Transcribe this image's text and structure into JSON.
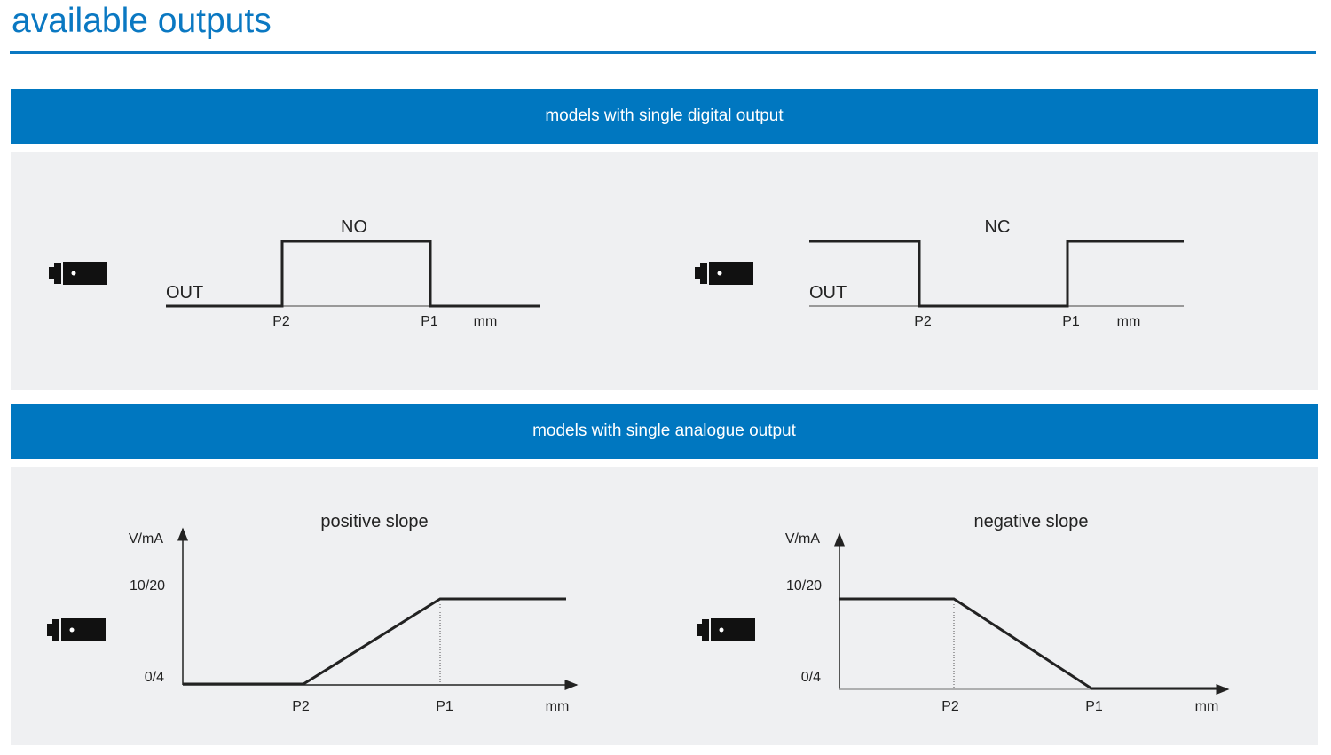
{
  "title": "available outputs",
  "sections": [
    {
      "header": "models with single digital output",
      "diagrams": [
        {
          "label": "NO",
          "y_label": "OUT",
          "x_ticks": [
            "P2",
            "P1"
          ],
          "x_unit": "mm"
        },
        {
          "label": "NC",
          "y_label": "OUT",
          "x_ticks": [
            "P2",
            "P1"
          ],
          "x_unit": "mm"
        }
      ]
    },
    {
      "header": "models with single analogue output",
      "diagrams": [
        {
          "label": "positive slope",
          "y_label": "V/mA",
          "y_ticks": [
            "10/20",
            "0/4"
          ],
          "x_ticks": [
            "P2",
            "P1"
          ],
          "x_unit": "mm"
        },
        {
          "label": "negative slope",
          "y_label": "V/mA",
          "y_ticks": [
            "10/20",
            "0/4"
          ],
          "x_ticks": [
            "P2",
            "P1"
          ],
          "x_unit": "mm"
        }
      ]
    }
  ],
  "colors": {
    "accent": "#0077c0",
    "panel": "#eff0f2"
  },
  "icons": [
    "sensor-icon"
  ]
}
